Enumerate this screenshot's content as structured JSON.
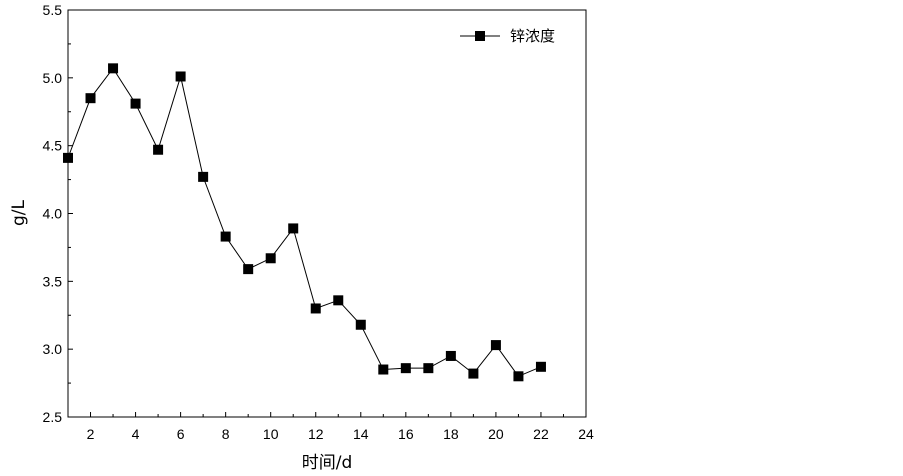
{
  "chart_data": {
    "type": "line",
    "xlabel": "时间/d",
    "ylabel": "g/L",
    "xlim": [
      1,
      24
    ],
    "ylim": [
      2.5,
      5.5
    ],
    "xticks": [
      2,
      4,
      6,
      8,
      10,
      12,
      14,
      16,
      18,
      20,
      22,
      24
    ],
    "yticks": [
      2.5,
      3.0,
      3.5,
      4.0,
      4.5,
      5.0,
      5.5
    ],
    "ytick_labels": [
      "2.5",
      "3.0",
      "3.5",
      "4.0",
      "4.5",
      "5.0",
      "5.5"
    ],
    "legend_position": "top-right",
    "grid": false,
    "series": [
      {
        "name": "锌浓度",
        "marker": "square",
        "color": "#000000",
        "x": [
          1,
          2,
          3,
          4,
          5,
          6,
          7,
          8,
          9,
          10,
          11,
          12,
          13,
          14,
          15,
          16,
          17,
          18,
          19,
          20,
          21,
          22
        ],
        "y": [
          4.41,
          4.85,
          5.07,
          4.81,
          4.47,
          5.01,
          4.27,
          3.83,
          3.59,
          3.67,
          3.89,
          3.3,
          3.36,
          3.18,
          2.85,
          2.86,
          2.86,
          2.95,
          2.82,
          3.03,
          2.8,
          2.87
        ]
      }
    ]
  }
}
